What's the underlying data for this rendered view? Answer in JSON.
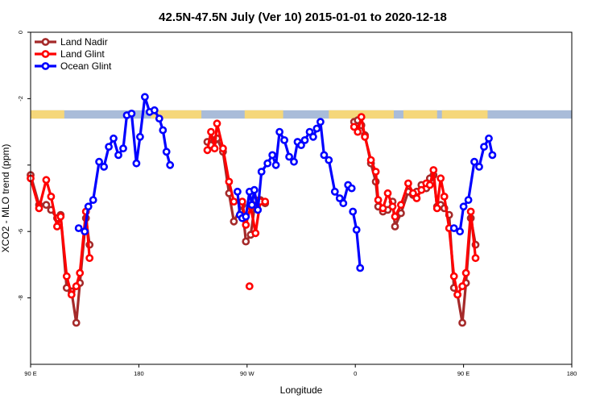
{
  "chart_data": {
    "type": "line",
    "title": "42.5N-47.5N July (Ver 10)   2015-01-01 to 2020-12-18",
    "xlabel": "Longitude",
    "ylabel": "XCO2 - MLO trend (ppm)",
    "xlim": [
      90,
      450
    ],
    "ylim": [
      -10,
      0
    ],
    "x_ticks": [
      {
        "value": 90,
        "label": "90 E"
      },
      {
        "value": 180,
        "label": "180"
      },
      {
        "value": 270,
        "label": "90 W"
      },
      {
        "value": 360,
        "label": "0"
      },
      {
        "value": 450,
        "label": "90 E"
      },
      {
        "value": 540,
        "label": "180"
      }
    ],
    "x_range_shown": [
      90,
      540
    ],
    "y_ticks": [
      {
        "value": 0,
        "label": "0"
      },
      {
        "value": -2,
        "label": "-2"
      },
      {
        "value": -4,
        "label": ""
      },
      {
        "value": -6,
        "label": "-6"
      },
      {
        "value": -8,
        "label": "-8"
      }
    ],
    "grid": false,
    "legend_position": "top-left",
    "land_sea_band": {
      "y_top": -2.35,
      "y_bottom": -2.6,
      "land_color": "#f5d77a",
      "ocean_color": "#a9bcd9"
    },
    "series": [
      {
        "name": "Land Nadir",
        "color": "#a52a2a",
        "segments": [
          [
            [
              90,
              -4.3
            ],
            [
              97,
              -5.2
            ],
            [
              103,
              -5.2
            ],
            [
              107,
              -5.35
            ],
            [
              112,
              -5.6
            ],
            [
              115,
              -5.5
            ],
            [
              120,
              -7.7
            ],
            [
              124,
              -7.8
            ],
            [
              128,
              -8.75
            ],
            [
              131,
              -7.55
            ],
            [
              136,
              -5.6
            ],
            [
              139,
              -6.4
            ]
          ],
          [
            [
              237,
              -3.3
            ],
            [
              240,
              -3.4
            ],
            [
              243,
              -3.25
            ],
            [
              245,
              -3.2
            ],
            [
              250,
              -3.6
            ],
            [
              255,
              -4.85
            ],
            [
              259,
              -5.7
            ],
            [
              266,
              -5.2
            ],
            [
              269,
              -6.3
            ],
            [
              273,
              -6.1
            ],
            [
              277,
              -5.05
            ],
            [
              281,
              -5.05
            ],
            [
              285,
              -5.15
            ]
          ],
          [
            [
              359,
              -2.7
            ],
            [
              362,
              -2.65
            ],
            [
              365,
              -2.8
            ],
            [
              368,
              -3.1
            ],
            [
              373,
              -3.95
            ],
            [
              377,
              -4.5
            ],
            [
              379,
              -5.25
            ],
            [
              383,
              -5.4
            ],
            [
              387,
              -5.35
            ],
            [
              391,
              -5.1
            ],
            [
              393,
              -5.85
            ],
            [
              398,
              -5.45
            ],
            [
              404,
              -4.8
            ],
            [
              408,
              -4.9
            ],
            [
              411,
              -4.8
            ],
            [
              415,
              -4.6
            ],
            [
              419,
              -4.7
            ],
            [
              422,
              -4.4
            ],
            [
              425,
              -4.3
            ],
            [
              428,
              -5.25
            ],
            [
              431,
              -5.2
            ],
            [
              434,
              -5.3
            ],
            [
              438,
              -5.5
            ],
            [
              442,
              -7.7
            ],
            [
              445,
              -7.9
            ],
            [
              449,
              -8.75
            ],
            [
              452,
              -7.55
            ],
            [
              456,
              -5.6
            ],
            [
              460,
              -6.4
            ]
          ]
        ]
      },
      {
        "name": "Land Glint",
        "color": "#ff0000",
        "segments": [
          [
            [
              90,
              -4.4
            ],
            [
              97,
              -5.3
            ],
            [
              103,
              -4.45
            ],
            [
              107,
              -4.95
            ],
            [
              112,
              -5.85
            ],
            [
              115,
              -5.55
            ],
            [
              120,
              -7.35
            ],
            [
              124,
              -7.9
            ],
            [
              128,
              -7.65
            ],
            [
              131,
              -7.25
            ],
            [
              136,
              -5.4
            ],
            [
              139,
              -6.8
            ]
          ],
          [
            [
              237,
              -3.55
            ],
            [
              240,
              -3.0
            ],
            [
              243,
              -3.5
            ],
            [
              245,
              -2.75
            ],
            [
              250,
              -3.5
            ],
            [
              255,
              -4.5
            ],
            [
              259,
              -5.1
            ],
            [
              266,
              -5.1
            ],
            [
              269,
              -5.8
            ],
            [
              273,
              -5.25
            ],
            [
              277,
              -6.05
            ],
            [
              281,
              -5.1
            ],
            [
              285,
              -5.1
            ]
          ],
          [
            [
              272,
              -7.65
            ]
          ],
          [
            [
              359,
              -2.85
            ],
            [
              362,
              -3.0
            ],
            [
              365,
              -2.55
            ],
            [
              368,
              -3.15
            ],
            [
              373,
              -3.85
            ],
            [
              377,
              -4.2
            ],
            [
              379,
              -5.05
            ],
            [
              383,
              -5.3
            ],
            [
              387,
              -4.85
            ],
            [
              391,
              -5.25
            ],
            [
              393,
              -5.55
            ],
            [
              398,
              -5.2
            ],
            [
              404,
              -4.55
            ],
            [
              408,
              -4.85
            ],
            [
              411,
              -5.0
            ],
            [
              415,
              -4.75
            ],
            [
              419,
              -4.55
            ],
            [
              422,
              -4.6
            ],
            [
              425,
              -4.15
            ],
            [
              428,
              -5.3
            ],
            [
              431,
              -4.4
            ],
            [
              434,
              -4.95
            ],
            [
              438,
              -5.9
            ],
            [
              442,
              -7.35
            ],
            [
              445,
              -7.9
            ],
            [
              449,
              -7.65
            ],
            [
              452,
              -7.25
            ],
            [
              456,
              -5.4
            ],
            [
              460,
              -6.8
            ]
          ]
        ]
      },
      {
        "name": "Ocean Glint",
        "color": "#0000ff",
        "segments": [
          [
            [
              130,
              -5.9
            ],
            [
              135,
              -6.0
            ],
            [
              138,
              -5.25
            ],
            [
              142,
              -5.05
            ],
            [
              147,
              -3.9
            ],
            [
              151,
              -4.05
            ],
            [
              155,
              -3.45
            ],
            [
              159,
              -3.2
            ],
            [
              163,
              -3.7
            ],
            [
              167,
              -3.5
            ],
            [
              170,
              -2.5
            ],
            [
              174,
              -2.45
            ],
            [
              178,
              -3.95
            ],
            [
              181,
              -3.15
            ],
            [
              185,
              -1.95
            ],
            [
              189,
              -2.4
            ],
            [
              193,
              -2.35
            ],
            [
              197,
              -2.6
            ],
            [
              200,
              -2.95
            ],
            [
              203,
              -3.6
            ],
            [
              206,
              -4.0
            ]
          ],
          [
            [
              262,
              -4.8
            ],
            [
              264,
              -5.5
            ],
            [
              266,
              -5.6
            ],
            [
              269,
              -5.55
            ],
            [
              272,
              -4.8
            ],
            [
              274,
              -5.2
            ],
            [
              276,
              -4.75
            ],
            [
              279,
              -5.35
            ],
            [
              282,
              -4.2
            ],
            [
              287,
              -3.95
            ],
            [
              291,
              -3.7
            ],
            [
              294,
              -4.0
            ],
            [
              297,
              -3.0
            ],
            [
              301,
              -3.25
            ],
            [
              305,
              -3.75
            ],
            [
              309,
              -3.9
            ],
            [
              312,
              -3.3
            ],
            [
              315,
              -3.4
            ],
            [
              318,
              -3.25
            ],
            [
              322,
              -3.0
            ],
            [
              325,
              -3.15
            ],
            [
              328,
              -2.9
            ],
            [
              331,
              -2.7
            ],
            [
              334,
              -3.7
            ],
            [
              338,
              -3.85
            ],
            [
              343,
              -4.8
            ],
            [
              347,
              -5.0
            ],
            [
              350,
              -5.15
            ],
            [
              354,
              -4.6
            ],
            [
              357,
              -4.7
            ]
          ],
          [
            [
              358,
              -5.4
            ],
            [
              361,
              -5.95
            ],
            [
              364,
              -7.1
            ]
          ],
          [
            [
              442,
              -5.9
            ],
            [
              447,
              -6.0
            ],
            [
              450,
              -5.25
            ],
            [
              454,
              -5.05
            ],
            [
              459,
              -3.9
            ],
            [
              463,
              -4.05
            ],
            [
              467,
              -3.45
            ],
            [
              471,
              -3.2
            ],
            [
              474,
              -3.7
            ]
          ]
        ]
      }
    ]
  }
}
